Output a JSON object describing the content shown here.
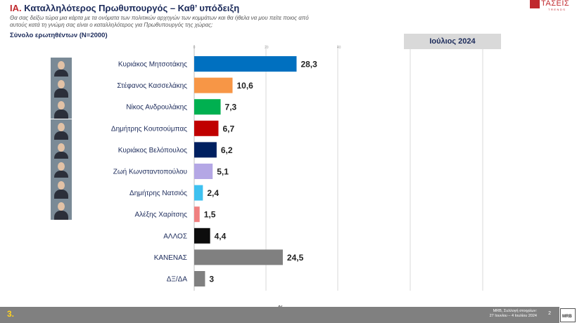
{
  "header": {
    "title_prefix": "IA.",
    "title": "Καταλληλότερος  Πρωθυπουργός – Καθ’ υπόδειξη",
    "question": "Θα σας δείξω τώρα μια κάρτα με τα ονόματα των πολιτικών αρχηγών των κομμάτων και θα ήθελα να μου πείτε ποιος από αυτούς κατά τη γνώμη σας είναι ο καταλληλότερος για Πρωθυπουργός της χώρας;",
    "total": "Σύνολο ερωτηθέντων (N=2000)"
  },
  "logo": {
    "name": "ΤΑΣΕΙΣ",
    "sub": "TRENDS"
  },
  "period_label": "Ιούλιος 2024",
  "footer": {
    "slide_number": "3.",
    "source_line1": "MRB, Συλλογή στοιχείων:",
    "source_line2": "27 Ιουνίου – 4 Ιουλίου 2024",
    "page": "2",
    "mrb": "MRB"
  },
  "chart_data": {
    "type": "bar",
    "orientation": "horizontal",
    "xlabel": "%",
    "xlim": [
      0,
      100
    ],
    "xticks": [
      0,
      20,
      40
    ],
    "grid": true,
    "categories": [
      "Κυριάκος Μητσοτάκης",
      "Στέφανος Κασσελάκης",
      "Νίκος Ανδρουλάκης",
      "Δημήτρης Κουτσούμπας",
      "Κυριάκος Βελόπουλος",
      "Ζωή Κωνσταντοπούλου",
      "Δημήτρης Νατσιός",
      "Αλέξης Χαρίτσης",
      "ΑΛΛΟΣ",
      "ΚΑΝΕΝΑΣ",
      "ΔΞ/ΔΑ"
    ],
    "values": [
      28.3,
      10.6,
      7.3,
      6.7,
      6.2,
      5.1,
      2.4,
      1.5,
      4.4,
      24.5,
      3
    ],
    "value_labels": [
      "28,3",
      "10,6",
      "7,3",
      "6,7",
      "6,2",
      "5,1",
      "2,4",
      "1,5",
      "4,4",
      "24,5",
      "3"
    ],
    "colors": [
      "#0070c0",
      "#f79646",
      "#00b050",
      "#c00000",
      "#002060",
      "#b4a7e5",
      "#3ec1f0",
      "#f08080",
      "#0d0d0d",
      "#808080",
      "#808080"
    ]
  }
}
